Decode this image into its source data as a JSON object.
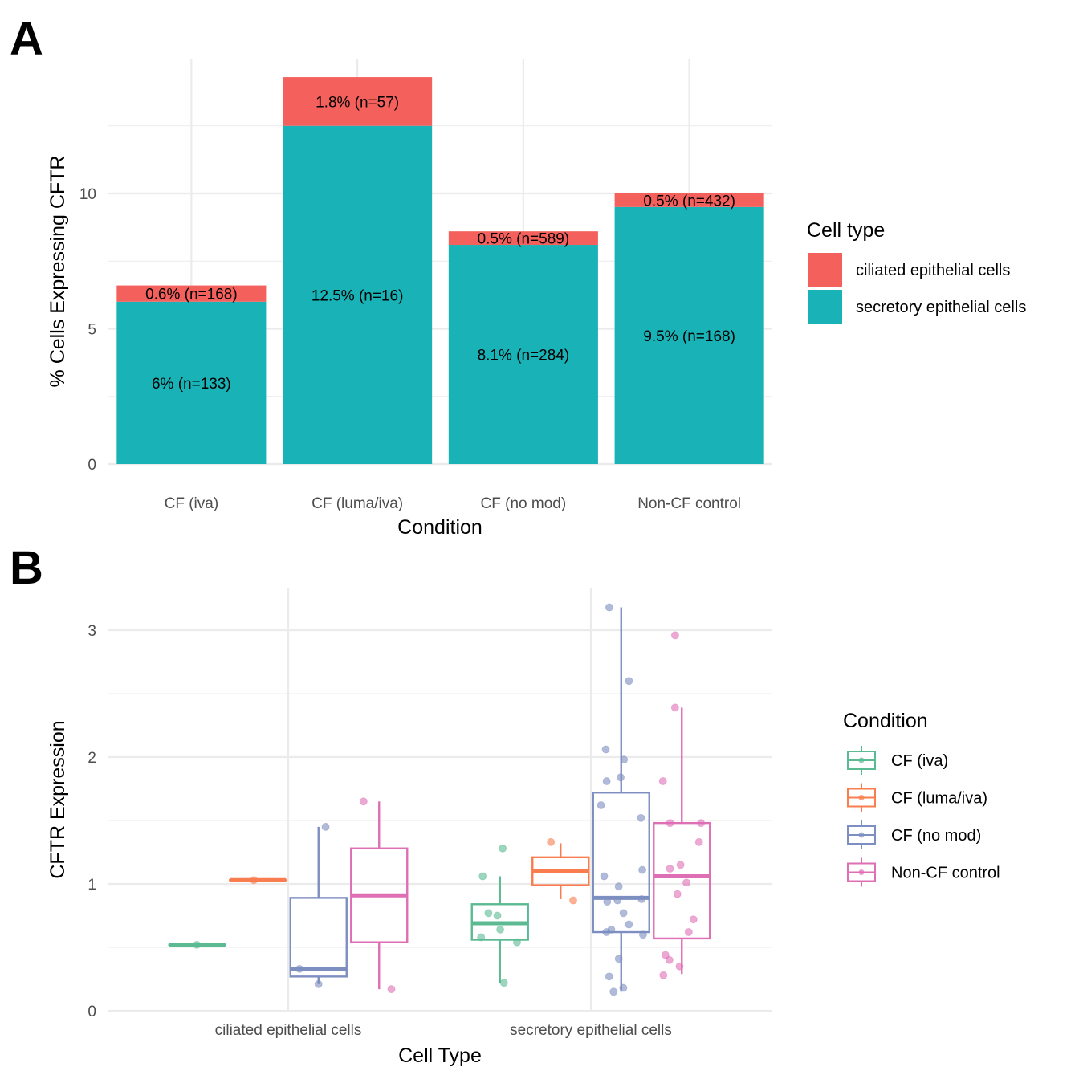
{
  "chart_data": [
    {
      "panel": "A",
      "type": "bar",
      "stacked": true,
      "title": "",
      "xlabel": "Condition",
      "ylabel": "% Cells Expressing CFTR",
      "ylim": [
        0,
        15
      ],
      "yticks": [
        0,
        5,
        10
      ],
      "grid": true,
      "categories": [
        "CF (iva)",
        "CF (luma/iva)",
        "CF (no mod)",
        "Non-CF control"
      ],
      "series": [
        {
          "name": "secretory epithelial cells",
          "color": "#19B2B6",
          "values": [
            6.0,
            12.5,
            8.1,
            9.5
          ],
          "labels": [
            "6% (n=133)",
            "12.5% (n=16)",
            "8.1% (n=284)",
            "9.5% (n=168)"
          ]
        },
        {
          "name": "ciliated epithelial cells",
          "color": "#F4615D",
          "values": [
            0.6,
            1.8,
            0.5,
            0.5
          ],
          "labels": [
            "0.6% (n=168)",
            "1.8% (n=57)",
            "0.5% (n=589)",
            "0.5% (n=432)"
          ]
        }
      ],
      "legend": {
        "title": "Cell type",
        "position": "right",
        "items": [
          {
            "label": "ciliated epithelial cells",
            "color": "#F4615D"
          },
          {
            "label": "secretory epithelial cells",
            "color": "#19B2B6"
          }
        ]
      }
    },
    {
      "panel": "B",
      "type": "boxplot",
      "title": "",
      "xlabel": "Cell Type",
      "ylabel": "CFTR Expression",
      "ylim": [
        0,
        3.2
      ],
      "yticks": [
        0,
        1,
        2,
        3
      ],
      "grid": true,
      "categories": [
        "ciliated epithelial cells",
        "secretory epithelial cells"
      ],
      "legend": {
        "title": "Condition",
        "position": "right",
        "items": [
          {
            "label": "CF (iva)",
            "color": "#5BBA92"
          },
          {
            "label": "CF (luma/iva)",
            "color": "#F97D4E"
          },
          {
            "label": "CF (no mod)",
            "color": "#7D8EC0"
          },
          {
            "label": "Non-CF control",
            "color": "#DE6FB5"
          }
        ]
      },
      "series": [
        {
          "name": "CF (iva)",
          "color": "#5BBA92",
          "boxes": [
            {
              "category": "ciliated epithelial cells",
              "min": 0.52,
              "q1": 0.52,
              "median": 0.52,
              "q3": 0.52,
              "max": 0.52,
              "points": [
                0.52
              ]
            },
            {
              "category": "secretory epithelial cells",
              "min": 0.22,
              "q1": 0.56,
              "median": 0.69,
              "q3": 0.84,
              "max": 1.06,
              "points": [
                1.28,
                1.06,
                0.77,
                0.75,
                0.64,
                0.58,
                0.54,
                0.22
              ]
            }
          ]
        },
        {
          "name": "CF (luma/iva)",
          "color": "#F97D4E",
          "boxes": [
            {
              "category": "ciliated epithelial cells",
              "min": 1.03,
              "q1": 1.03,
              "median": 1.03,
              "q3": 1.03,
              "max": 1.03,
              "points": [
                1.03
              ]
            },
            {
              "category": "secretory epithelial cells",
              "min": 0.88,
              "q1": 0.99,
              "median": 1.1,
              "q3": 1.21,
              "max": 1.32,
              "points": [
                1.33,
                0.87
              ]
            }
          ]
        },
        {
          "name": "CF (no mod)",
          "color": "#7D8EC0",
          "boxes": [
            {
              "category": "ciliated epithelial cells",
              "min": 0.21,
              "q1": 0.27,
              "median": 0.33,
              "q3": 0.89,
              "max": 1.45,
              "points": [
                1.45,
                0.33,
                0.21
              ]
            },
            {
              "category": "secretory epithelial cells",
              "min": 0.15,
              "q1": 0.62,
              "median": 0.89,
              "q3": 1.72,
              "max": 3.18,
              "points": [
                3.18,
                2.6,
                2.06,
                1.98,
                1.84,
                1.81,
                1.62,
                1.52,
                1.11,
                1.06,
                0.98,
                0.88,
                0.86,
                0.87,
                0.77,
                0.68,
                0.64,
                0.62,
                0.6,
                0.41,
                0.27,
                0.18,
                0.15
              ]
            }
          ]
        },
        {
          "name": "Non-CF control",
          "color": "#DE6FB5",
          "boxes": [
            {
              "category": "ciliated epithelial cells",
              "min": 0.17,
              "q1": 0.54,
              "median": 0.91,
              "q3": 1.28,
              "max": 1.65,
              "points": [
                1.65,
                0.17
              ]
            },
            {
              "category": "secretory epithelial cells",
              "min": 0.29,
              "q1": 0.57,
              "median": 1.06,
              "q3": 1.48,
              "max": 2.39,
              "points": [
                2.96,
                2.39,
                1.81,
                1.48,
                1.48,
                1.33,
                1.15,
                1.12,
                1.01,
                0.92,
                0.72,
                0.62,
                0.44,
                0.4,
                0.35,
                0.28
              ]
            }
          ]
        }
      ]
    }
  ],
  "panels": {
    "a_letter": "A",
    "b_letter": "B"
  }
}
